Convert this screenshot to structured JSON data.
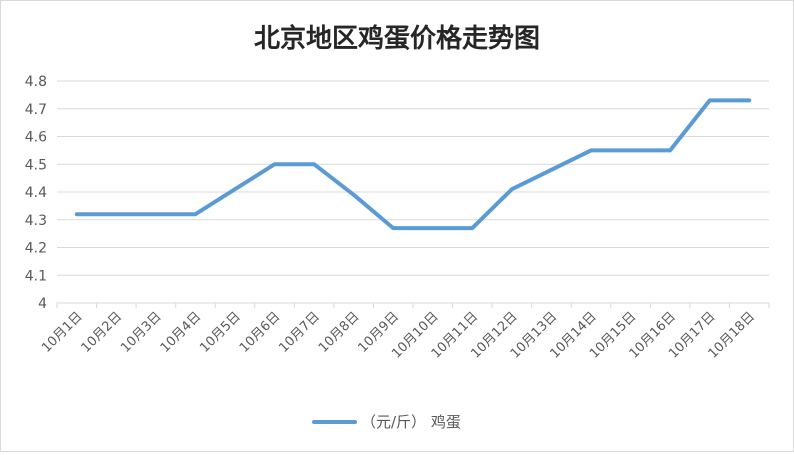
{
  "chart_data": {
    "type": "line",
    "title": "北京地区鸡蛋价格走势图",
    "xlabel": "",
    "ylabel": "",
    "categories": [
      "10月1日",
      "10月2日",
      "10月3日",
      "10月4日",
      "10月5日",
      "10月6日",
      "10月7日",
      "10月8日",
      "10月9日",
      "10月10日",
      "10月11日",
      "10月12日",
      "10月13日",
      "10月14日",
      "10月15日",
      "10月16日",
      "10月17日",
      "10月18日"
    ],
    "series": [
      {
        "name": "（元/斤） 鸡蛋",
        "values": [
          4.32,
          4.32,
          4.32,
          4.32,
          4.41,
          4.5,
          4.5,
          4.39,
          4.27,
          4.27,
          4.27,
          4.41,
          4.48,
          4.55,
          4.55,
          4.55,
          4.73,
          4.73
        ]
      }
    ],
    "ylim": [
      4,
      4.8
    ],
    "yticks": [
      "4",
      "4.1",
      "4.2",
      "4.3",
      "4.4",
      "4.5",
      "4.6",
      "4.7",
      "4.8"
    ],
    "grid": true,
    "legend": "bottom",
    "colors": {
      "series": "#5b9bd5",
      "grid": "#d9d9d9",
      "text": "#595959",
      "title": "#262626"
    }
  }
}
